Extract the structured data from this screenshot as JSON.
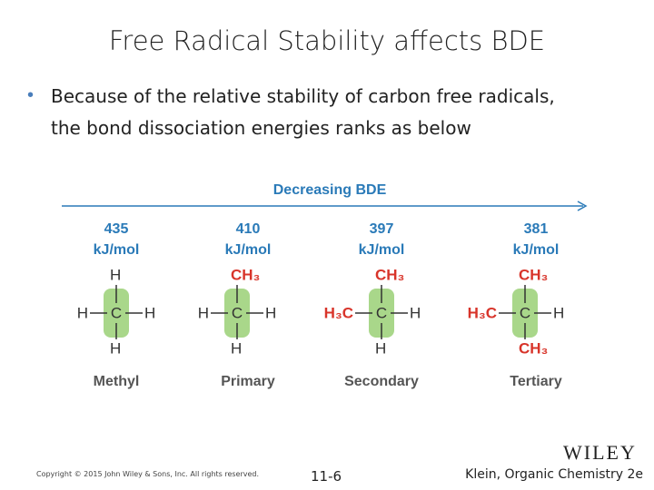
{
  "title": "Free Radical Stability affects BDE",
  "bullet": {
    "line1": "Because of the relative stability of carbon free radicals,",
    "line2": "the bond dissociation energies ranks as below"
  },
  "figure": {
    "arrow_label": "Decreasing BDE",
    "columns": [
      {
        "bde": 435,
        "unit": "kJ/mol",
        "top": "H",
        "left": "H",
        "center": "C",
        "right": "H",
        "bottom": "H",
        "name": "Methyl"
      },
      {
        "bde": 410,
        "unit": "kJ/mol",
        "top": "CH₃",
        "left": "H",
        "center": "C",
        "right": "H",
        "bottom": "H",
        "name": "Primary"
      },
      {
        "bde": 397,
        "unit": "kJ/mol",
        "top": "CH₃",
        "left": "H₃C",
        "center": "C",
        "right": "H",
        "bottom": "H",
        "name": "Secondary"
      },
      {
        "bde": 381,
        "unit": "kJ/mol",
        "top": "CH₃",
        "left": "H₃C",
        "center": "C",
        "right": "H",
        "bottom": "CH₃",
        "name": "Tertiary"
      }
    ]
  },
  "footer": {
    "copyright": "Copyright © 2015 John Wiley & Sons, Inc. All rights reserved.",
    "slide_number": "11-6",
    "logo": "WILEY",
    "source": "Klein, Organic Chemistry 2e"
  }
}
